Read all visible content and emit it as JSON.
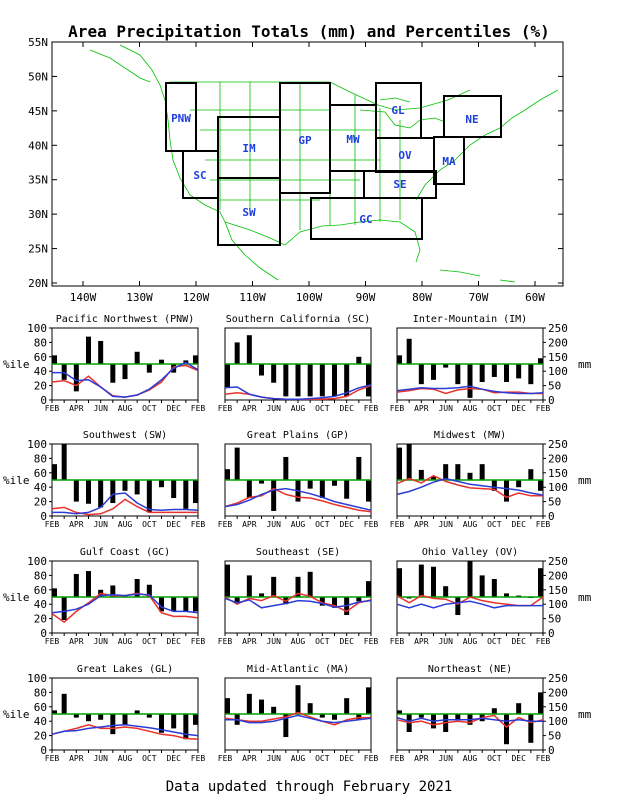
{
  "title": "Area Precipitation Totals (mm) and Percentiles (%)",
  "footer": "Data updated through February 2021",
  "colors": {
    "bars": "#000000",
    "percentile_line": "#e8322a",
    "total_line": "#2b3bd6",
    "median_line": "#00a000",
    "map_lines": "#00c000",
    "region_boxes": "#000000",
    "region_labels": "#1e3fe0"
  },
  "map": {
    "lat_labels": [
      "55N",
      "50N",
      "45N",
      "40N",
      "35N",
      "30N",
      "25N",
      "20N"
    ],
    "lon_labels": [
      "140W",
      "130W",
      "120W",
      "110W",
      "100W",
      "90W",
      "80W",
      "70W",
      "60W"
    ],
    "regions": [
      "PNW",
      "SC",
      "IM",
      "SW",
      "GP",
      "MW",
      "GL",
      "OV",
      "MA",
      "SE",
      "GC",
      "NE"
    ]
  },
  "chart_common": {
    "months": [
      "FEB",
      "APR",
      "JUN",
      "AUG",
      "OCT",
      "DEC",
      "FEB"
    ],
    "left_axis_label": "%ile",
    "right_axis_label": "mm",
    "left_ticks": [
      "100",
      "80",
      "60",
      "40",
      "20",
      "0"
    ],
    "right_ticks": [
      "250",
      "200",
      "150",
      "100",
      "50",
      "0"
    ]
  },
  "chart_data": [
    {
      "type": "bar",
      "title": "Pacific Northwest (PNW)",
      "ylim": [
        0,
        100
      ],
      "y2lim": [
        0,
        250
      ],
      "percentile_bars": [
        62,
        28,
        12,
        88,
        82,
        24,
        29,
        67,
        38,
        56,
        38,
        55,
        62
      ],
      "series": [
        {
          "values": [
            25,
            27,
            20,
            33,
            18,
            6,
            4,
            7,
            14,
            25,
            46,
            48,
            41
          ]
        },
        {
          "values": [
            38,
            38,
            27,
            28,
            18,
            5,
            4,
            7,
            15,
            28,
            44,
            52,
            42
          ]
        }
      ]
    },
    {
      "type": "bar",
      "title": "Southern California (SC)",
      "ylim": [
        0,
        100
      ],
      "y2lim": [
        0,
        250
      ],
      "percentile_bars": [
        18,
        80,
        90,
        34,
        24,
        5,
        5,
        5,
        5,
        5,
        5,
        60,
        5
      ],
      "series": [
        {
          "values": [
            8,
            10,
            8,
            4,
            2,
            1,
            1,
            1,
            1,
            2,
            5,
            14,
            20
          ]
        },
        {
          "values": [
            17,
            18,
            8,
            4,
            2,
            1,
            1,
            2,
            3,
            5,
            10,
            17,
            21
          ]
        }
      ]
    },
    {
      "type": "bar",
      "title": "Inter-Mountain (IM)",
      "ylim": [
        0,
        100
      ],
      "y2lim": [
        0,
        250
      ],
      "percentile_bars": [
        62,
        85,
        22,
        28,
        45,
        22,
        3,
        25,
        32,
        25,
        30,
        22,
        58
      ],
      "series": [
        {
          "values": [
            11,
            13,
            16,
            15,
            9,
            14,
            16,
            15,
            10,
            11,
            11,
            9,
            9
          ]
        },
        {
          "values": [
            13,
            15,
            17,
            16,
            16,
            17,
            19,
            15,
            12,
            10,
            9,
            9,
            10
          ]
        }
      ]
    },
    {
      "type": "bar",
      "title": "Southwest (SW)",
      "ylim": [
        0,
        100
      ],
      "y2lim": [
        0,
        250
      ],
      "percentile_bars": [
        72,
        100,
        20,
        17,
        12,
        18,
        35,
        30,
        5,
        40,
        25,
        10,
        18
      ],
      "series": [
        {
          "values": [
            10,
            12,
            5,
            2,
            3,
            10,
            23,
            13,
            5,
            5,
            5,
            5,
            5
          ]
        },
        {
          "values": [
            5,
            5,
            3,
            5,
            12,
            30,
            32,
            18,
            9,
            8,
            9,
            9,
            8
          ]
        }
      ]
    },
    {
      "type": "bar",
      "title": "Great Plains (GP)",
      "ylim": [
        0,
        100
      ],
      "y2lim": [
        0,
        250
      ],
      "percentile_bars": [
        65,
        95,
        25,
        45,
        7,
        82,
        20,
        38,
        25,
        42,
        24,
        82,
        20
      ],
      "series": [
        {
          "values": [
            13,
            18,
            26,
            28,
            38,
            30,
            26,
            25,
            21,
            16,
            12,
            8,
            6
          ]
        },
        {
          "values": [
            13,
            16,
            22,
            30,
            36,
            38,
            35,
            31,
            26,
            20,
            16,
            12,
            8
          ]
        }
      ]
    },
    {
      "type": "bar",
      "title": "Midwest (MW)",
      "ylim": [
        0,
        100
      ],
      "y2lim": [
        0,
        250
      ],
      "percentile_bars": [
        95,
        100,
        64,
        55,
        72,
        72,
        60,
        72,
        35,
        20,
        40,
        65,
        35
      ],
      "series": [
        {
          "values": [
            45,
            52,
            46,
            56,
            48,
            43,
            39,
            38,
            37,
            26,
            32,
            28,
            28
          ]
        },
        {
          "values": [
            30,
            34,
            40,
            47,
            52,
            48,
            44,
            42,
            40,
            38,
            36,
            32,
            29
          ]
        }
      ]
    },
    {
      "type": "bar",
      "title": "Gulf Coast (GC)",
      "ylim": [
        0,
        100
      ],
      "y2lim": [
        0,
        250
      ],
      "percentile_bars": [
        62,
        18,
        82,
        86,
        60,
        66,
        52,
        75,
        67,
        30,
        30,
        30,
        30
      ],
      "series": [
        {
          "values": [
            27,
            15,
            30,
            42,
            55,
            52,
            52,
            55,
            52,
            28,
            23,
            23,
            21
          ]
        },
        {
          "values": [
            28,
            30,
            33,
            40,
            52,
            53,
            52,
            54,
            53,
            36,
            30,
            30,
            28
          ]
        }
      ]
    },
    {
      "type": "bar",
      "title": "Southeast (SE)",
      "ylim": [
        0,
        100
      ],
      "y2lim": [
        0,
        250
      ],
      "percentile_bars": [
        95,
        42,
        80,
        55,
        78,
        40,
        78,
        85,
        38,
        35,
        25,
        44,
        72
      ],
      "series": [
        {
          "values": [
            50,
            40,
            48,
            45,
            52,
            44,
            55,
            51,
            42,
            38,
            30,
            42,
            46
          ]
        },
        {
          "values": [
            48,
            42,
            46,
            35,
            38,
            41,
            45,
            44,
            41,
            36,
            38,
            43,
            45
          ]
        }
      ]
    },
    {
      "type": "bar",
      "title": "Ohio Valley (OV)",
      "ylim": [
        0,
        100
      ],
      "y2lim": [
        0,
        250
      ],
      "percentile_bars": [
        90,
        48,
        95,
        92,
        65,
        25,
        100,
        80,
        75,
        55,
        52,
        50,
        90
      ],
      "series": [
        {
          "values": [
            52,
            42,
            52,
            48,
            47,
            40,
            50,
            45,
            42,
            40,
            38,
            38,
            50
          ]
        },
        {
          "values": [
            40,
            35,
            40,
            35,
            40,
            42,
            44,
            40,
            35,
            38,
            38,
            38,
            38
          ]
        }
      ]
    },
    {
      "type": "bar",
      "title": "Great Lakes (GL)",
      "ylim": [
        0,
        100
      ],
      "y2lim": [
        0,
        250
      ],
      "percentile_bars": [
        55,
        78,
        45,
        40,
        42,
        22,
        35,
        55,
        45,
        24,
        30,
        15,
        35
      ],
      "series": [
        {
          "values": [
            22,
            26,
            30,
            35,
            30,
            30,
            32,
            30,
            26,
            22,
            20,
            16,
            15
          ]
        },
        {
          "values": [
            22,
            26,
            27,
            30,
            32,
            34,
            35,
            33,
            31,
            28,
            25,
            22,
            20
          ]
        }
      ]
    },
    {
      "type": "bar",
      "title": "Mid-Atlantic (MA)",
      "ylim": [
        0,
        100
      ],
      "y2lim": [
        0,
        250
      ],
      "percentile_bars": [
        72,
        35,
        78,
        70,
        60,
        18,
        90,
        65,
        45,
        42,
        72,
        42,
        87
      ],
      "series": [
        {
          "values": [
            44,
            42,
            40,
            40,
            43,
            46,
            52,
            46,
            40,
            35,
            42,
            45,
            45
          ]
        },
        {
          "values": [
            42,
            42,
            38,
            38,
            40,
            44,
            48,
            44,
            40,
            38,
            40,
            42,
            44
          ]
        }
      ]
    },
    {
      "type": "bar",
      "title": "Northeast (NE)",
      "ylim": [
        0,
        100
      ],
      "y2lim": [
        0,
        250
      ],
      "percentile_bars": [
        55,
        25,
        45,
        30,
        25,
        42,
        35,
        40,
        58,
        8,
        65,
        10,
        80
      ],
      "series": [
        {
          "values": [
            42,
            38,
            40,
            35,
            38,
            40,
            38,
            45,
            48,
            32,
            45,
            38,
            42
          ]
        },
        {
          "values": [
            45,
            40,
            44,
            40,
            42,
            42,
            42,
            44,
            42,
            40,
            42,
            40,
            40
          ]
        }
      ]
    }
  ]
}
